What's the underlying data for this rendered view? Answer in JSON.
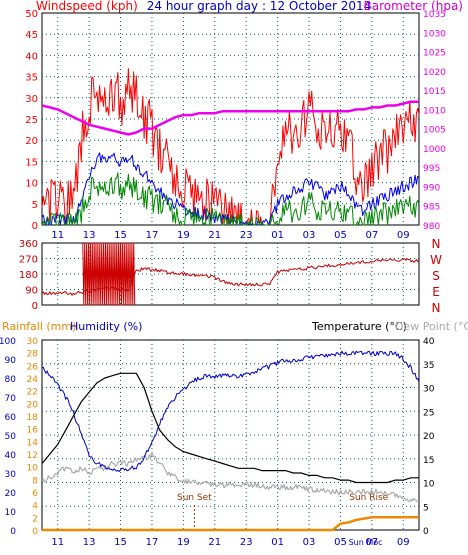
{
  "title": "24 hour graph day : 12 October 2014",
  "colors": {
    "wind": "#ff0000",
    "avgwind": "#0000ee",
    "gust": "#008800",
    "baro": "#ee00ee",
    "dir": "#cc0000",
    "humidity": "#0000cc",
    "temp": "#000000",
    "dew": "#aaaaaa",
    "rain": "#ee8800",
    "axis_blue": "#0000cc",
    "grid": "#006666",
    "sun": "#993300"
  },
  "x_ticks": [
    "11",
    "13",
    "15",
    "17",
    "19",
    "21",
    "23",
    "01",
    "03",
    "05",
    "07",
    "09"
  ],
  "chart_data": [
    {
      "type": "line",
      "panel": "wind",
      "ylabel": "Windspeed (kph)",
      "ylabel_right": "Barometer (hpa)",
      "ylim": [
        0,
        50
      ],
      "ylim_right": [
        980,
        1035
      ],
      "y_ticks": [
        "0",
        "5",
        "10",
        "15",
        "20",
        "25",
        "30",
        "35",
        "40",
        "45",
        "50"
      ],
      "y_ticks_right": [
        "980",
        "985",
        "990",
        "995",
        "1000",
        "1005",
        "1010",
        "1015",
        "1020",
        "1025",
        "1030",
        "1035"
      ],
      "x": [
        10,
        10.5,
        11,
        11.5,
        12,
        12.5,
        13,
        13.5,
        14,
        14.5,
        15,
        15.5,
        16,
        16.5,
        17,
        17.5,
        18,
        18.5,
        19,
        19.5,
        20,
        20.5,
        21,
        21.5,
        22,
        22.5,
        23,
        23.5,
        24,
        24.5,
        25,
        25.5,
        26,
        26.5,
        27,
        27.5,
        28,
        28.5,
        29,
        29.5,
        30,
        30.5,
        31,
        31.5,
        32,
        32.5,
        33,
        33.5,
        34
      ],
      "series": [
        {
          "key": "wind",
          "values": [
            5,
            5,
            5,
            4,
            6,
            20,
            28,
            33,
            30,
            32,
            29,
            31,
            30,
            26,
            23,
            17,
            14,
            12,
            10,
            8,
            6,
            5,
            4,
            3,
            2,
            0,
            0,
            0,
            0,
            0,
            18,
            20,
            22,
            24,
            26,
            25,
            20,
            22,
            24,
            21,
            12,
            10,
            14,
            16,
            18,
            20,
            22,
            24,
            26
          ]
        },
        {
          "key": "avgwind",
          "values": [
            1,
            1,
            1,
            1,
            1,
            5,
            12,
            16,
            15,
            17,
            15,
            16,
            14,
            12,
            10,
            8,
            6,
            5,
            4,
            3,
            3,
            2,
            2,
            1,
            1,
            0,
            0,
            0,
            0,
            0,
            5,
            6,
            8,
            9,
            10,
            9,
            7,
            8,
            9,
            8,
            4,
            3,
            5,
            6,
            7,
            8,
            9,
            10,
            11
          ]
        },
        {
          "key": "gust",
          "values": [
            0,
            0,
            0,
            0,
            0,
            3,
            8,
            10,
            9,
            10,
            9,
            9,
            8,
            7,
            6,
            5,
            4,
            3,
            2,
            2,
            1,
            1,
            1,
            0,
            0,
            0,
            0,
            0,
            0,
            0,
            2,
            3,
            3,
            4,
            5,
            4,
            3,
            3,
            4,
            3,
            1,
            1,
            2,
            2,
            3,
            3,
            4,
            4,
            5
          ]
        },
        {
          "key": "baro",
          "values": [
            1011,
            1010.5,
            1010,
            1009,
            1008,
            1007,
            1006,
            1005.5,
            1005,
            1004.5,
            1004,
            1003.5,
            1004,
            1005,
            1005,
            1006,
            1007,
            1008,
            1008.5,
            1008.5,
            1009,
            1009,
            1009,
            1009.5,
            1009.5,
            1009.5,
            1009.5,
            1009.5,
            1009.5,
            1009.5,
            1009.5,
            1009.5,
            1009.5,
            1009.5,
            1009.5,
            1009.5,
            1009.5,
            1009.5,
            1009.5,
            1009.5,
            1010,
            1010,
            1010.5,
            1010.5,
            1011,
            1011,
            1011.5,
            1012,
            1012
          ]
        }
      ]
    },
    {
      "type": "line",
      "panel": "direction",
      "ylim": [
        0,
        360
      ],
      "y_ticks": [
        "0",
        "90",
        "180",
        "270",
        "360"
      ],
      "dir_labels": [
        "N",
        "W",
        "S",
        "E",
        "N"
      ],
      "x": [
        10,
        10.5,
        11,
        11.5,
        12,
        12.5,
        13,
        13.5,
        14,
        14.5,
        15,
        15.5,
        16,
        16.5,
        17,
        17.5,
        18,
        18.5,
        19,
        19.5,
        20,
        20.5,
        21,
        21.5,
        22,
        22.5,
        23,
        23.5,
        24,
        24.5,
        25,
        25.5,
        26,
        26.5,
        27,
        27.5,
        28,
        28.5,
        29,
        29.5,
        30,
        30.5,
        31,
        31.5,
        32,
        32.5,
        33,
        33.5,
        34
      ],
      "values": [
        70,
        68,
        70,
        72,
        60,
        75,
        80,
        90,
        100,
        95,
        90,
        85,
        200,
        210,
        205,
        200,
        190,
        185,
        180,
        175,
        170,
        165,
        160,
        140,
        120,
        120,
        120,
        120,
        120,
        120,
        190,
        200,
        205,
        210,
        215,
        220,
        225,
        230,
        235,
        240,
        245,
        250,
        255,
        260,
        265,
        265,
        260,
        255,
        260
      ]
    },
    {
      "type": "line",
      "panel": "temperature",
      "ylabel": "Rainfall (mm)",
      "ylabel2": "Humidity (%)",
      "ylabel_right": "Temperature (°C)",
      "ylabel_right2": "Dew Point (°C)",
      "ylim_humidity": [
        0,
        100
      ],
      "ylim_rain": [
        0,
        30
      ],
      "ylim_temp": [
        0,
        40
      ],
      "y_ticks_humidity": [
        "0",
        "10",
        "20",
        "30",
        "40",
        "50",
        "60",
        "70",
        "80",
        "90",
        "100"
      ],
      "y_ticks_rain": [
        "0",
        "2",
        "4",
        "6",
        "8",
        "10",
        "12",
        "14",
        "16",
        "18",
        "20",
        "22",
        "24",
        "26",
        "28",
        "30"
      ],
      "y_ticks_temp": [
        "0",
        "5",
        "10",
        "15",
        "20",
        "25",
        "30",
        "35",
        "40"
      ],
      "annotations": [
        {
          "label": "Sun Set",
          "x": 19.7
        },
        {
          "label": "Sun Rise",
          "x": 30.8
        },
        {
          "label": "Sun Moc",
          "x": 30.6
        }
      ],
      "x": [
        10,
        10.5,
        11,
        11.5,
        12,
        12.5,
        13,
        13.5,
        14,
        14.5,
        15,
        15.5,
        16,
        16.5,
        17,
        17.5,
        18,
        18.5,
        19,
        19.5,
        20,
        20.5,
        21,
        21.5,
        22,
        22.5,
        23,
        23.5,
        24,
        24.5,
        25,
        25.5,
        26,
        26.5,
        27,
        27.5,
        28,
        28.5,
        29,
        29.5,
        30,
        30.5,
        31,
        31.5,
        32,
        32.5,
        33,
        33.5,
        34
      ],
      "series": [
        {
          "key": "temp",
          "values": [
            14,
            16,
            18,
            21,
            24,
            27,
            29,
            31,
            32,
            32.5,
            33,
            33,
            33,
            30,
            25,
            21,
            19,
            17.5,
            16.5,
            16,
            15.5,
            15,
            14.5,
            14,
            13.5,
            13,
            13,
            13,
            12.5,
            12.5,
            12.5,
            12.5,
            12,
            12,
            11.5,
            11.5,
            11,
            11,
            10.5,
            10.5,
            10,
            10,
            10,
            10,
            10,
            10.5,
            10.5,
            11,
            11
          ]
        },
        {
          "key": "dew",
          "values": [
            10,
            11,
            12,
            13,
            12,
            13,
            12,
            13,
            13,
            14,
            14,
            14,
            15,
            15,
            16,
            14,
            12,
            11,
            10.5,
            10,
            10,
            10,
            9.5,
            9.5,
            9.5,
            9.5,
            9.5,
            9.5,
            9,
            9,
            9,
            9,
            9,
            9,
            8.5,
            8.5,
            8.5,
            8,
            8,
            8,
            8,
            8,
            8,
            8,
            7.5,
            7.5,
            7,
            6.5,
            6
          ]
        },
        {
          "key": "humidity",
          "values": [
            85,
            82,
            76,
            70,
            62,
            50,
            40,
            35,
            33,
            32,
            32,
            32,
            33,
            38,
            46,
            56,
            65,
            70,
            74,
            78,
            80,
            81,
            81,
            81,
            81,
            81,
            82,
            83,
            85,
            86,
            88,
            89,
            89,
            90,
            91,
            91,
            92,
            92,
            93,
            93,
            93,
            93,
            93,
            93,
            93,
            93,
            90,
            85,
            78
          ]
        },
        {
          "key": "rain",
          "values": [
            0,
            0,
            0,
            0,
            0,
            0,
            0,
            0,
            0,
            0,
            0,
            0,
            0,
            0,
            0,
            0,
            0,
            0,
            0,
            0,
            0,
            0,
            0,
            0,
            0,
            0,
            0,
            0,
            0,
            0,
            0,
            0,
            0,
            0,
            0,
            0,
            0,
            0,
            1,
            1.2,
            1.6,
            1.8,
            2,
            2,
            2,
            2,
            2,
            2,
            2
          ]
        }
      ]
    }
  ]
}
